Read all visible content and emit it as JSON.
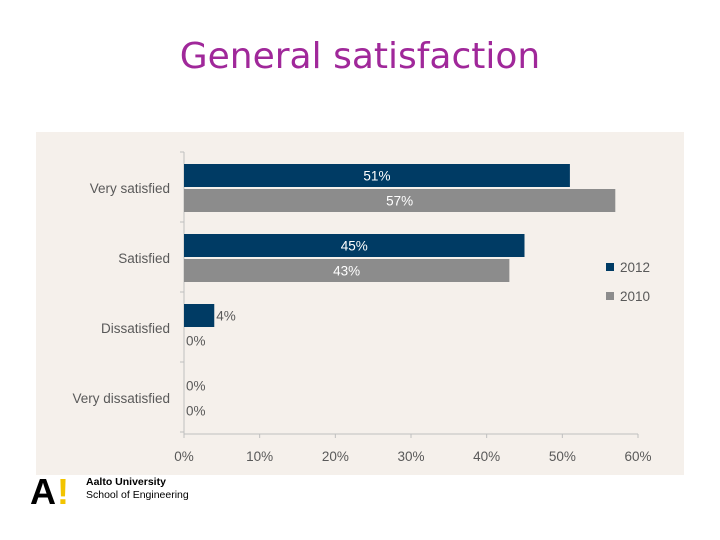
{
  "title": "General satisfaction",
  "logo": {
    "mark_letter": "A",
    "mark_bang": "!",
    "university": "Aalto University",
    "school": "School of Engineering"
  },
  "colors": {
    "title": "#a0289a",
    "series_2012": "#003b64",
    "series_2010": "#8c8c8c",
    "panel": "#f5f0eb",
    "tick": "#595959"
  },
  "chart_data": {
    "type": "bar",
    "orientation": "horizontal",
    "title": "",
    "categories": [
      "Very satisfied",
      "Satisfied",
      "Dissatisfied",
      "Very dissatisfied"
    ],
    "series": [
      {
        "name": "2012",
        "values": [
          51,
          45,
          4,
          0
        ],
        "labels": [
          "51%",
          "45%",
          "4%",
          "0%"
        ]
      },
      {
        "name": "2010",
        "values": [
          57,
          43,
          0,
          0
        ],
        "labels": [
          "57%",
          "43%",
          "0%",
          "0%"
        ]
      }
    ],
    "xlim": [
      0,
      60
    ],
    "xticks": [
      0,
      10,
      20,
      30,
      40,
      50,
      60
    ],
    "xtick_labels": [
      "0%",
      "10%",
      "20%",
      "30%",
      "40%",
      "50%",
      "60%"
    ],
    "xlabel": "",
    "ylabel": "",
    "legend": {
      "position": "right",
      "entries": [
        "2012",
        "2010"
      ]
    },
    "grid": false
  }
}
